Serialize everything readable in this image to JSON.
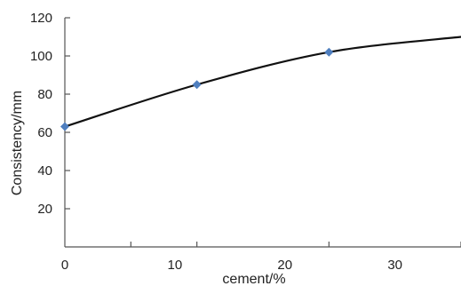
{
  "chart_data": {
    "type": "line",
    "title": "",
    "xlabel": "cement/%",
    "ylabel": "Consistency/mm",
    "xlim": [
      0,
      36
    ],
    "ylim": [
      0,
      120
    ],
    "x_ticks": [
      0,
      10,
      20,
      30
    ],
    "x_minor_ticks": [
      6,
      12,
      24,
      36
    ],
    "y_ticks": [
      20,
      40,
      60,
      80,
      100,
      120
    ],
    "grid": false,
    "legend": "none",
    "series": [
      {
        "x": [
          0,
          12,
          24,
          36
        ],
        "y": [
          63,
          85,
          102,
          110
        ],
        "markers_at": [
          0,
          1,
          2
        ],
        "line_color": "#111111",
        "marker_color": "#4f7fbf",
        "marker": "diamond"
      }
    ]
  }
}
